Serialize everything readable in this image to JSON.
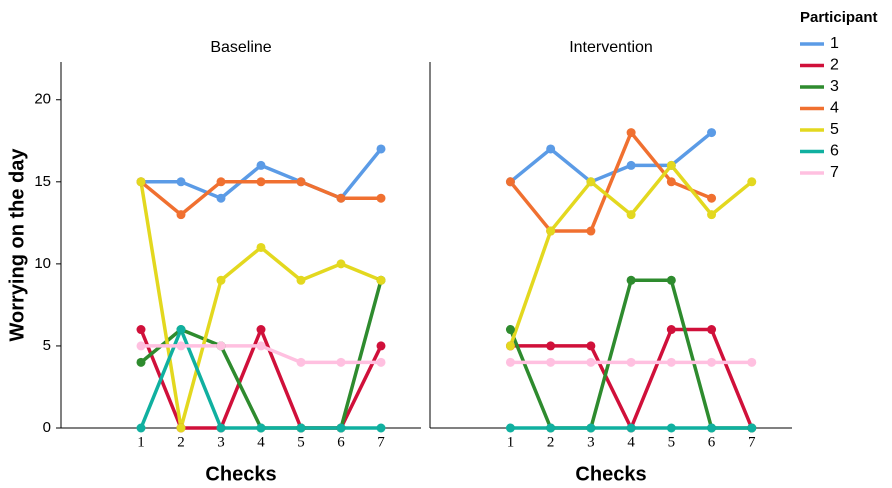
{
  "chart_data": [
    {
      "type": "line",
      "title": "Baseline",
      "ylabel": "Worrying on the day",
      "xlabel": "Checks",
      "legend_title": "Participant",
      "x": [
        1,
        2,
        3,
        4,
        5,
        6,
        7
      ],
      "xlim": [
        -1,
        8
      ],
      "xticks": [
        1,
        2,
        3,
        4,
        5,
        6,
        7
      ],
      "ylim": [
        0,
        22.3
      ],
      "yticks": [
        0,
        5,
        10,
        15,
        20
      ],
      "series": [
        {
          "name": "1",
          "color": "#5b9be6",
          "values": [
            15,
            15,
            14,
            16,
            15,
            14,
            17
          ]
        },
        {
          "name": "2",
          "color": "#d0103a",
          "values": [
            6,
            0,
            0,
            6,
            0,
            0,
            5
          ]
        },
        {
          "name": "3",
          "color": "#2e8b2e",
          "values": [
            4,
            6,
            5,
            0,
            0,
            0,
            9
          ]
        },
        {
          "name": "4",
          "color": "#f07030",
          "values": [
            15,
            13,
            15,
            15,
            15,
            14,
            14
          ]
        },
        {
          "name": "5",
          "color": "#e3d81f",
          "values": [
            15,
            0,
            9,
            11,
            9,
            10,
            9
          ]
        },
        {
          "name": "6",
          "color": "#10b0a0",
          "values": [
            0,
            6,
            0,
            0,
            0,
            0,
            0
          ]
        },
        {
          "name": "7",
          "color": "#ffc0e0",
          "values": [
            5,
            5,
            5,
            5,
            4,
            4,
            4
          ]
        }
      ]
    },
    {
      "type": "line",
      "title": "Intervention",
      "xlabel": "Checks",
      "x": [
        1,
        2,
        3,
        4,
        5,
        6,
        7
      ],
      "xlim": [
        -1,
        8
      ],
      "xticks": [
        1,
        2,
        3,
        4,
        5,
        6,
        7
      ],
      "ylim": [
        0,
        22.3
      ],
      "series": [
        {
          "color": "#5b9be6",
          "values": [
            15,
            17,
            15,
            16,
            16,
            18,
            null
          ]
        },
        {
          "color": "#d0103a",
          "values": [
            5,
            5,
            5,
            0,
            6,
            6,
            0
          ]
        },
        {
          "color": "#2e8b2e",
          "values": [
            6,
            0,
            0,
            9,
            9,
            0,
            0
          ]
        },
        {
          "color": "#f07030",
          "values": [
            15,
            12,
            12,
            18,
            15,
            14,
            null
          ]
        },
        {
          "color": "#e3d81f",
          "values": [
            5,
            12,
            15,
            13,
            16,
            13,
            15
          ]
        },
        {
          "color": "#10b0a0",
          "values": [
            0,
            0,
            0,
            0,
            0,
            0,
            0
          ]
        },
        {
          "color": "#ffc0e0",
          "values": [
            4,
            4,
            4,
            4,
            4,
            4,
            4
          ]
        }
      ]
    }
  ]
}
